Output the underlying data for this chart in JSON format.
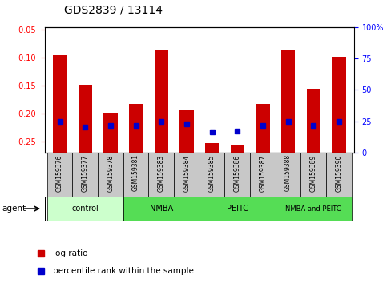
{
  "title": "GDS2839 / 13114",
  "samples": [
    "GSM159376",
    "GSM159377",
    "GSM159378",
    "GSM159381",
    "GSM159383",
    "GSM159384",
    "GSM159385",
    "GSM159386",
    "GSM159387",
    "GSM159388",
    "GSM159389",
    "GSM159390"
  ],
  "log_ratio": [
    -0.095,
    -0.148,
    -0.198,
    -0.182,
    -0.087,
    -0.192,
    -0.252,
    -0.255,
    -0.183,
    -0.085,
    -0.155,
    -0.098
  ],
  "percentile_rank": [
    25.0,
    20.5,
    22.0,
    22.0,
    25.0,
    23.0,
    16.5,
    17.0,
    21.5,
    25.0,
    21.5,
    25.0
  ],
  "groups": [
    {
      "label": "control",
      "start": 0,
      "end": 3,
      "color": "#ccffcc"
    },
    {
      "label": "NMBA",
      "start": 3,
      "end": 6,
      "color": "#55dd55"
    },
    {
      "label": "PEITC",
      "start": 6,
      "end": 9,
      "color": "#55dd55"
    },
    {
      "label": "NMBA and PEITC",
      "start": 9,
      "end": 12,
      "color": "#55dd55"
    }
  ],
  "ylim_left": [
    -0.27,
    -0.045
  ],
  "ylim_right": [
    0,
    100
  ],
  "yticks_left": [
    -0.25,
    -0.2,
    -0.15,
    -0.1,
    -0.05
  ],
  "yticks_right": [
    0,
    25,
    50,
    75,
    100
  ],
  "bar_color": "#cc0000",
  "dot_color": "#0000cc",
  "bar_width": 0.55,
  "legend_items": [
    "log ratio",
    "percentile rank within the sample"
  ]
}
